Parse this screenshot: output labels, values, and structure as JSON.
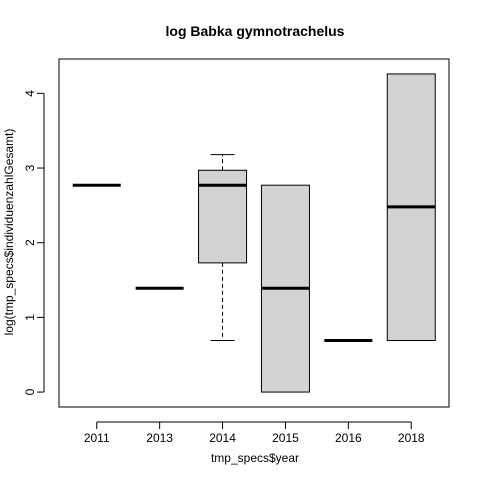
{
  "chart_data": {
    "type": "box",
    "title": "log Babka gymnotrachelus",
    "xlabel": "tmp_specs$year",
    "ylabel": "log(tmp_specs$individuenzahlGesamt)",
    "categories": [
      "2011",
      "2013",
      "2014",
      "2015",
      "2016",
      "2018"
    ],
    "boxes": [
      {
        "category": "2011",
        "whisker_low": 2.77,
        "q1": 2.77,
        "median": 2.77,
        "q3": 2.77,
        "whisker_high": 2.77
      },
      {
        "category": "2013",
        "whisker_low": 1.39,
        "q1": 1.39,
        "median": 1.39,
        "q3": 1.39,
        "whisker_high": 1.39
      },
      {
        "category": "2014",
        "whisker_low": 0.69,
        "q1": 1.73,
        "median": 2.77,
        "q3": 2.97,
        "whisker_high": 3.18
      },
      {
        "category": "2015",
        "whisker_low": 0.0,
        "q1": 0.0,
        "median": 1.39,
        "q3": 2.77,
        "whisker_high": 2.77
      },
      {
        "category": "2016",
        "whisker_low": 0.69,
        "q1": 0.69,
        "median": 0.69,
        "q3": 0.69,
        "whisker_high": 0.69
      },
      {
        "category": "2018",
        "whisker_low": 0.69,
        "q1": 0.69,
        "median": 2.48,
        "q3": 4.26,
        "whisker_high": 4.26
      }
    ],
    "yticks": [
      0,
      1,
      2,
      3,
      4
    ],
    "ylim": [
      -0.2,
      4.46
    ],
    "grid": false,
    "legend": "none",
    "colors": {
      "box_fill": "#d3d3d3",
      "stroke": "#000000"
    }
  }
}
